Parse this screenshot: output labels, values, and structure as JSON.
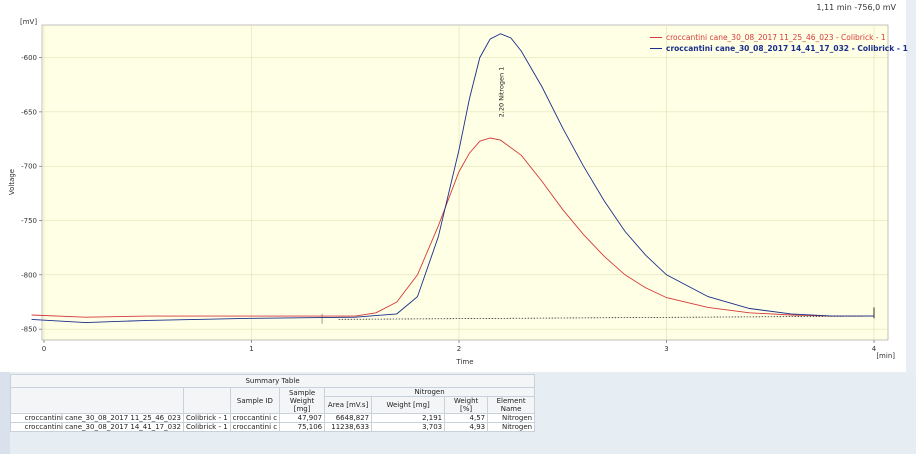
{
  "readout": "1,11 min  -756,0 mV",
  "legend": [
    {
      "label": "croccantini cane_30_08_2017 11_25_46_023 - Colibrick - 1",
      "color": "#d43a3a"
    },
    {
      "label": "croccantini cane_30_08_2017 14_41_17_032 - Colibrick - 1",
      "color": "#1a2f8a"
    }
  ],
  "colors": {
    "plot_bg": "#ffffe6",
    "grid": "#d9dca8",
    "red": "#d43a3a",
    "blue": "#1a2f8a"
  },
  "chart_data": {
    "type": "line",
    "ylabel": "Voltage",
    "xlabel": "Time",
    "yunit": "[mV]",
    "xunit": "[min]",
    "xlim": [
      0,
      4
    ],
    "ylim": [
      -860,
      -570
    ],
    "xticks": [
      "0",
      "1",
      "2",
      "3",
      "4"
    ],
    "yticks": [
      "-600",
      "-650",
      "-700",
      "-750",
      "-800",
      "-850"
    ],
    "annotation": "2,20 Nitrogen 1",
    "series": [
      {
        "name": "croccantini cane_30_08_2017 11_25_46_023 - Colibrick - 1",
        "color": "#d43a3a",
        "x": [
          -0.06,
          0.2,
          0.5,
          1.0,
          1.5,
          1.6,
          1.7,
          1.8,
          1.9,
          2.0,
          2.05,
          2.1,
          2.15,
          2.2,
          2.3,
          2.4,
          2.5,
          2.6,
          2.7,
          2.8,
          2.9,
          3.0,
          3.2,
          3.4,
          3.6,
          3.8,
          4.0
        ],
        "y": [
          -837,
          -839,
          -838,
          -838,
          -838,
          -835,
          -825,
          -800,
          -755,
          -705,
          -688,
          -677,
          -674,
          -676,
          -690,
          -714,
          -740,
          -763,
          -783,
          -800,
          -812,
          -821,
          -830,
          -835,
          -837,
          -838,
          -838
        ]
      },
      {
        "name": "croccantini cane_30_08_2017 14_41_17_032 - Colibrick - 1",
        "color": "#1a2f8a",
        "x": [
          -0.06,
          0.2,
          0.5,
          1.0,
          1.5,
          1.7,
          1.8,
          1.9,
          2.0,
          2.05,
          2.1,
          2.15,
          2.2,
          2.25,
          2.3,
          2.4,
          2.5,
          2.6,
          2.7,
          2.8,
          2.9,
          3.0,
          3.2,
          3.4,
          3.6,
          3.8,
          4.0
        ],
        "y": [
          -841,
          -844,
          -842,
          -840,
          -839,
          -836,
          -820,
          -765,
          -685,
          -638,
          -600,
          -583,
          -578,
          -582,
          -594,
          -627,
          -665,
          -700,
          -732,
          -760,
          -782,
          -800,
          -820,
          -831,
          -836,
          -838,
          -838
        ]
      }
    ]
  },
  "summary_table": {
    "title": "Summary Table",
    "group_header": "Nitrogen",
    "columns": {
      "sample_id": "Sample ID",
      "sample_weight": "Sample Weight [mg]",
      "area": "Area [mV.s]",
      "weight_mg": "Weight [mg]",
      "weight_pct": "Weight [%]",
      "element": "Element Name"
    },
    "rows": [
      {
        "name": "croccantini cane_30_08_2017 11_25_46_023",
        "method": "Colibrick - 1",
        "sample_id": "croccantini c",
        "sample_weight": "47,907",
        "area": "6648,827",
        "weight_mg": "2,191",
        "weight_pct": "4,57",
        "element": "Nitrogen"
      },
      {
        "name": "croccantini cane_30_08_2017 14_41_17_032",
        "method": "Colibrick - 1",
        "sample_id": "croccantini c",
        "sample_weight": "75,106",
        "area": "11238,633",
        "weight_mg": "3,703",
        "weight_pct": "4,93",
        "element": "Nitrogen"
      }
    ]
  }
}
